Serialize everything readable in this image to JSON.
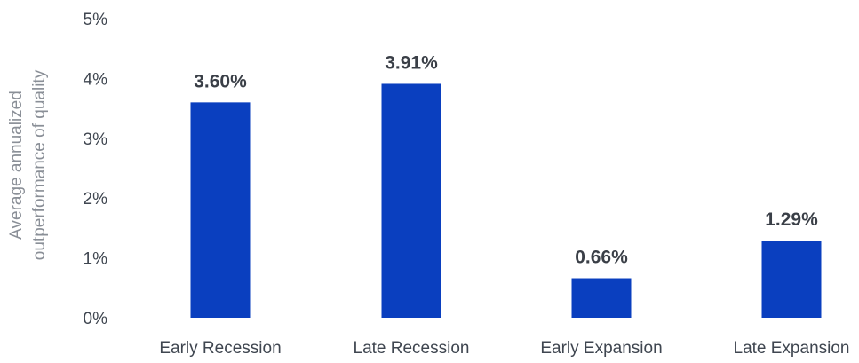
{
  "chart_data": {
    "type": "bar",
    "title": "",
    "xlabel": "",
    "ylabel_lines": [
      "Average annualized",
      "outperformance of quality"
    ],
    "categories": [
      "Early Recession",
      "Late Recession",
      "Early Expansion",
      "Late Expansion"
    ],
    "values": [
      3.6,
      3.91,
      0.66,
      1.29
    ],
    "value_labels": [
      "3.60%",
      "3.91%",
      "0.66%",
      "1.29%"
    ],
    "ylim": [
      0,
      5
    ],
    "y_ticks": [
      0,
      1,
      2,
      3,
      4,
      5
    ],
    "y_tick_labels": [
      "0%",
      "1%",
      "2%",
      "3%",
      "4%",
      "5%"
    ],
    "grid": false,
    "legend": "none",
    "bar_color": "#0a3fbf"
  }
}
